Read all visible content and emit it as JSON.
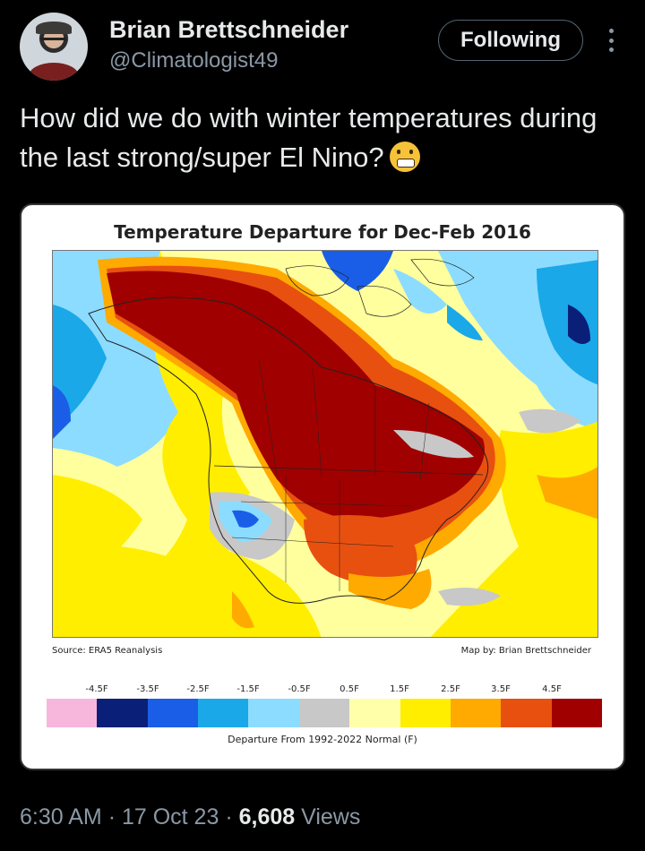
{
  "author": {
    "name": "Brian Brettschneider",
    "handle": "@Climatologist49",
    "follow_label": "Following"
  },
  "tweet": {
    "text": "How did we do with winter temperatures during the last strong/super El Nino?",
    "emoji": "grimacing-face"
  },
  "map": {
    "title": "Temperature Departure for Dec-Feb 2016",
    "source": "Source: ERA5 Reanalysis",
    "credit": "Map by: Brian Brettschneider",
    "legend_label": "Departure From 1992-2022 Normal (F)",
    "legend_ticks": [
      "-4.5F",
      "-3.5F",
      "-2.5F",
      "-1.5F",
      "-0.5F",
      "0.5F",
      "1.5F",
      "2.5F",
      "3.5F",
      "4.5F"
    ],
    "legend_colors": [
      "#f7b7dd",
      "#0a1f78",
      "#1a5ee8",
      "#1aa8e8",
      "#8cdcff",
      "#c8c8c8",
      "#ffffaa",
      "#ffee00",
      "#ffaa00",
      "#e85010",
      "#a00000"
    ]
  },
  "meta": {
    "time": "6:30 AM",
    "date": "17 Oct 23",
    "views_count": "6,608",
    "views_label": "Views"
  }
}
